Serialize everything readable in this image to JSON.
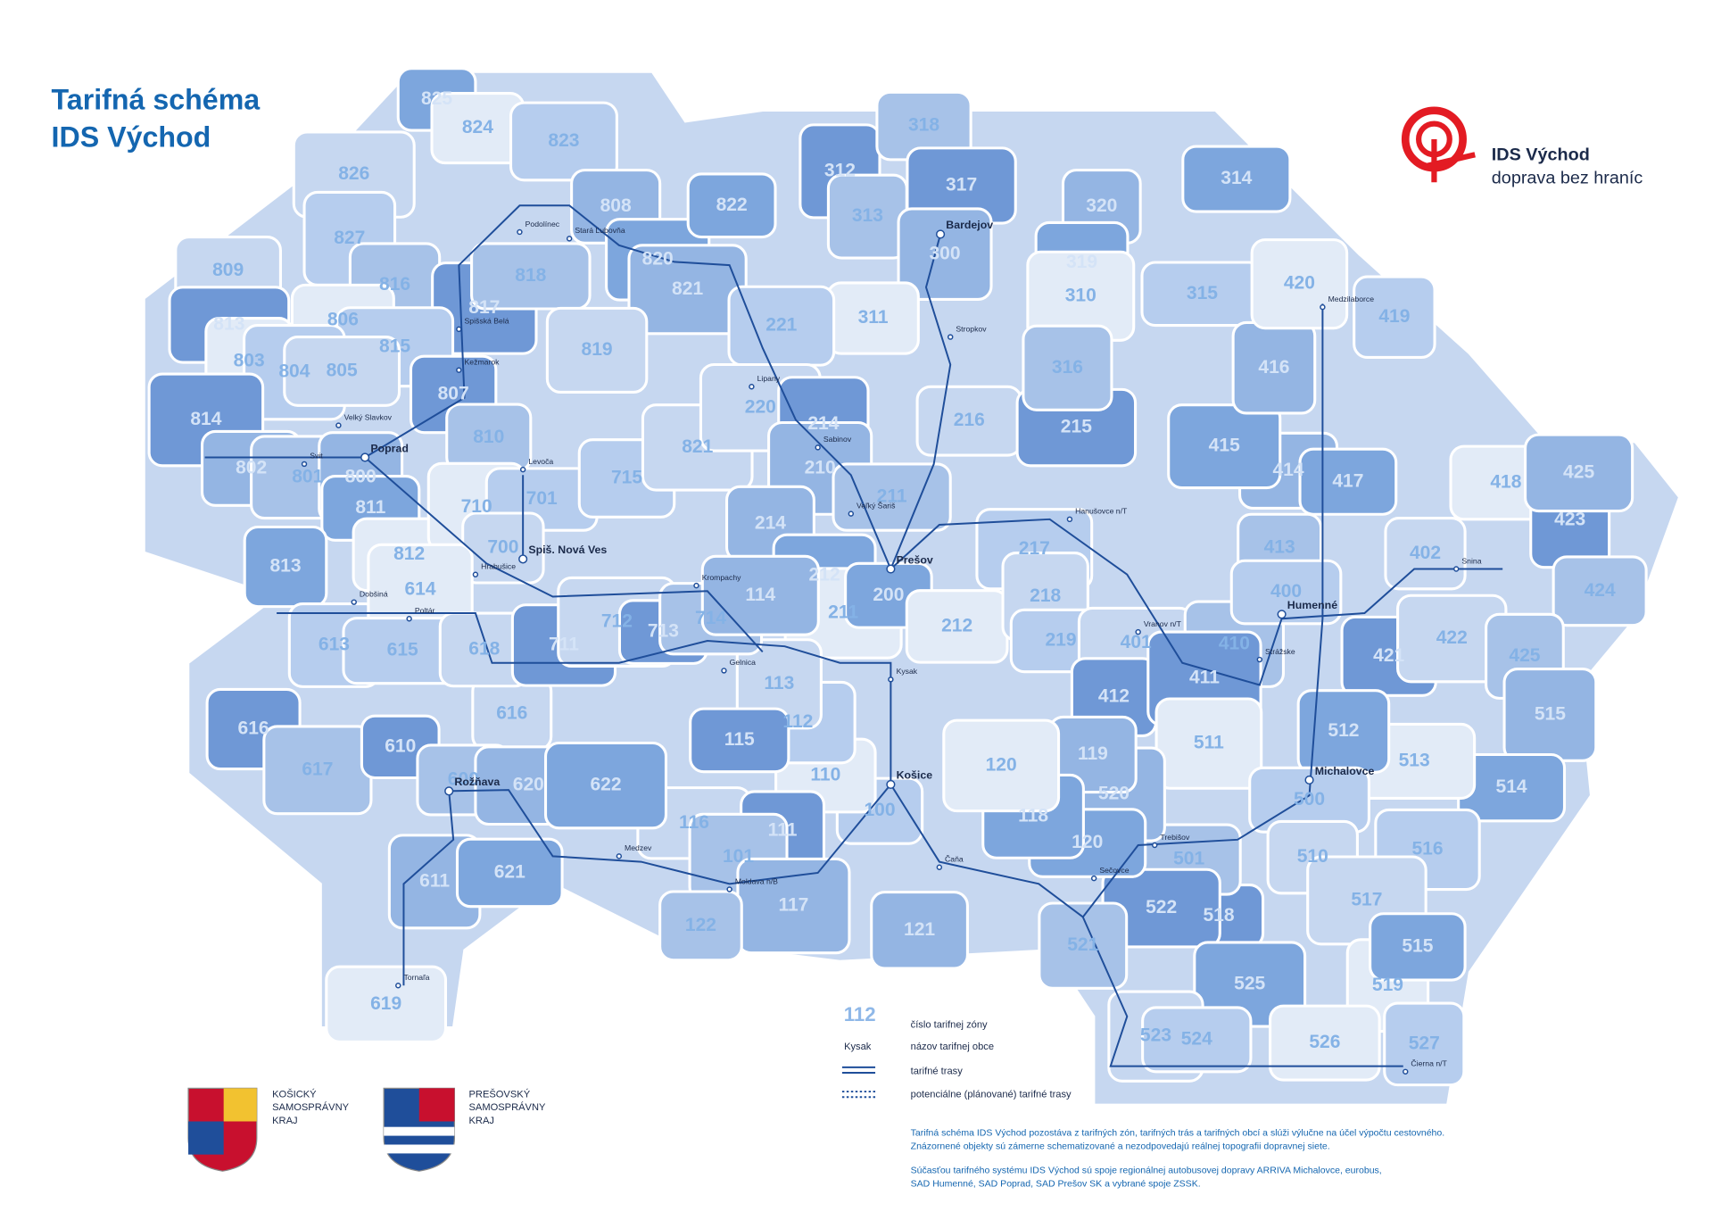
{
  "header": {
    "title": [
      "Tarifná schéma",
      "IDS Východ"
    ]
  },
  "logo": {
    "name": "IDS Východ",
    "slogan": "doprava bez hraníc"
  },
  "zones": [
    "825",
    "824",
    "823",
    "826",
    "827",
    "809",
    "813",
    "816",
    "817",
    "818",
    "808",
    "820",
    "821",
    "822",
    "806",
    "815",
    "803",
    "804",
    "805",
    "807",
    "819",
    "814",
    "810",
    "802",
    "801",
    "800",
    "811",
    "812",
    "813",
    "710",
    "701",
    "700",
    "715",
    "821",
    "312",
    "318",
    "317",
    "313",
    "300",
    "314",
    "320",
    "319",
    "310",
    "315",
    "311",
    "221",
    "220",
    "214",
    "216",
    "215",
    "316",
    "210",
    "211",
    "214",
    "212",
    "211",
    "200",
    "212",
    "217",
    "218",
    "219",
    "401",
    "412",
    "410",
    "411",
    "413",
    "414",
    "415",
    "416",
    "417",
    "418",
    "419",
    "420",
    "400",
    "402",
    "421",
    "422",
    "423",
    "424",
    "425",
    "425",
    "515",
    "514",
    "513",
    "512",
    "511",
    "500",
    "510",
    "516",
    "517",
    "518",
    "501",
    "522",
    "521",
    "520",
    "120",
    "119",
    "118",
    "120",
    "100",
    "110",
    "112",
    "113",
    "115",
    "116",
    "111",
    "101",
    "117",
    "122",
    "121",
    "525",
    "519",
    "515",
    "526",
    "527",
    "523",
    "524",
    "616",
    "616",
    "617",
    "610",
    "600",
    "620",
    "622",
    "611",
    "621",
    "619",
    "613",
    "614",
    "615",
    "618",
    "711",
    "712",
    "713",
    "714",
    "114"
  ],
  "towns": [
    "Bardejov",
    "Prešov",
    "Košice",
    "Poprad",
    "Spiš. Nová Ves",
    "Humenné",
    "Michalovce",
    "Rožňava",
    "Levoča",
    "Kežmarok",
    "Stará Ľubovňa",
    "Podolínec",
    "Spišská Belá",
    "Trebišov",
    "Medzilaborce",
    "Stropkov",
    "Sabinov",
    "Lipany",
    "Veľký Šariš",
    "Kysak",
    "Krompachy",
    "Gelnica",
    "Moldava n/B",
    "Strážske",
    "Snina",
    "Čierna n/T",
    "Tornaľa",
    "Svit",
    "Velký Slavkov",
    "Hanušovce n/T",
    "Vranov n/T",
    "Sečovce",
    "Čaňa",
    "Medzev",
    "Dobšiná",
    "Hrabušice",
    "Poltár"
  ],
  "legend": {
    "zone_sample": "112",
    "zone_desc": "číslo tarifnej zóny",
    "town_sample": "Kysak",
    "town_desc": "názov tarifnej obce",
    "route_desc": "tarifné trasy",
    "planned_desc": "potenciálne (plánované) tarifné trasy"
  },
  "regions": [
    [
      "KOŠICKÝ",
      "SAMOSPRÁVNY",
      "KRAJ"
    ],
    [
      "PREŠOVSKÝ",
      "SAMOSPRÁVNY",
      "KRAJ"
    ]
  ],
  "footnote": [
    "Tarifná schéma IDS Východ pozostáva z tarifných zón, tarifných trás a tarifných obcí a slúži výlučne na účel výpočtu cestovného.",
    "Znázornené objekty sú zámerne schematizované a nezodpovedajú reálnej topografii dopravnej siete.",
    "Súčasťou tarifného systému IDS Východ sú spoje regionálnej autobusovej dopravy ARRIVA Michalovce, eurobus,",
    "SAD Humenné, SAD Poprad, SAD Prešov SK a vybrané spoje ZSSK."
  ]
}
